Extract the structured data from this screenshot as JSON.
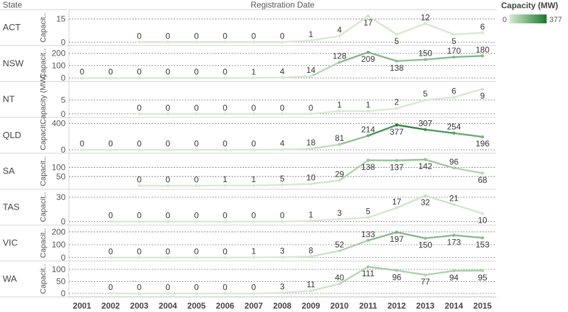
{
  "header": {
    "row_header": "State",
    "column_header": "Registration Date"
  },
  "legend": {
    "title": "Capacity (MW)",
    "min_label": "0",
    "max_label": "377",
    "color_low": "#d9ead3",
    "color_high": "#1b7a2e"
  },
  "chart_data": {
    "type": "line",
    "title": "",
    "xlabel": "Registration Date",
    "ylabel": "Capacity (MW)",
    "x": [
      "2001",
      "2002",
      "2003",
      "2004",
      "2005",
      "2006",
      "2007",
      "2008",
      "2009",
      "2010",
      "2011",
      "2012",
      "2013",
      "2014",
      "2015"
    ],
    "color_scale": {
      "min": 0,
      "max": 377
    },
    "panels": [
      {
        "state": "ACT",
        "axis_title": "Capacit..",
        "ticks": [
          0,
          15
        ],
        "ymax": 18,
        "values": [
          null,
          null,
          0,
          0,
          0,
          0,
          0,
          0,
          1,
          4,
          17,
          5,
          12,
          5,
          6
        ]
      },
      {
        "state": "NSW",
        "axis_title": "Capacit..",
        "ticks": [
          0,
          100,
          200
        ],
        "ymax": 225,
        "values": [
          0,
          0,
          0,
          0,
          0,
          0,
          1,
          4,
          14,
          128,
          209,
          138,
          150,
          170,
          180
        ]
      },
      {
        "state": "NT",
        "axis_title": "Capacity (MW)",
        "ticks": [
          0,
          5
        ],
        "ymax": 10,
        "values": [
          null,
          null,
          0,
          0,
          0,
          0,
          0,
          0,
          0,
          1,
          1,
          2,
          5,
          6,
          9
        ]
      },
      {
        "state": "QLD",
        "axis_title": "Capacit..",
        "ticks": [
          0,
          400
        ],
        "ymax": 420,
        "values": [
          0,
          0,
          0,
          0,
          0,
          0,
          0,
          4,
          18,
          81,
          214,
          377,
          307,
          254,
          196
        ]
      },
      {
        "state": "SA",
        "axis_title": "Capacit..",
        "ticks": [
          50,
          100
        ],
        "ymax": 150,
        "values": [
          null,
          null,
          0,
          0,
          0,
          1,
          1,
          5,
          10,
          29,
          138,
          137,
          142,
          96,
          68
        ]
      },
      {
        "state": "TAS",
        "axis_title": "Capacit..",
        "ticks": [
          0,
          30
        ],
        "ymax": 34,
        "values": [
          null,
          0,
          0,
          0,
          0,
          0,
          0,
          0,
          1,
          3,
          5,
          17,
          32,
          21,
          10
        ]
      },
      {
        "state": "VIC",
        "axis_title": "Capacit..",
        "ticks": [
          0,
          100,
          200
        ],
        "ymax": 215,
        "values": [
          null,
          0,
          0,
          0,
          0,
          0,
          1,
          3,
          8,
          52,
          133,
          197,
          150,
          173,
          153
        ]
      },
      {
        "state": "WA",
        "axis_title": "Capacit..",
        "ticks": [
          0,
          50,
          100
        ],
        "ymax": 115,
        "values": [
          null,
          0,
          0,
          0,
          0,
          0,
          0,
          3,
          11,
          40,
          111,
          96,
          77,
          94,
          95
        ]
      }
    ]
  }
}
